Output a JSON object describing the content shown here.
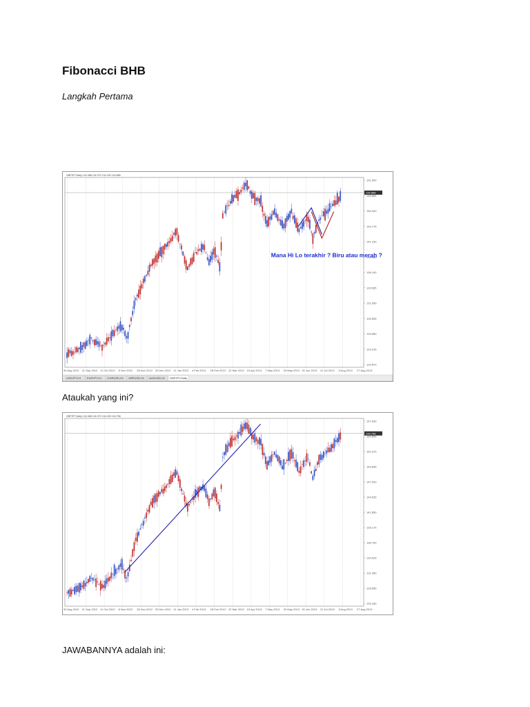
{
  "document": {
    "title": "Fibonacci BHB",
    "subtitle": "Langkah Pertama",
    "para_1": "Ataukah yang ini?",
    "para_2": "JAWABANNYA adalah ini:"
  },
  "chart_data": [
    {
      "type": "candlestick",
      "symbol_header": "GBPJPY,Daily  134.388 134.370 134.155 134.888",
      "annotation": "Mana Hi Lo terakhir ? Biru atau merah ?",
      "x_ticks": [
        "30 Aug 2012",
        "21 Sep 2012",
        "11 Oct 2012",
        "8 Nov 2012",
        "28 Nov 2012",
        "20 Dec 2012",
        "11 Jan 2013",
        "4 Feb 2013",
        "28 Feb 2013",
        "22 Mar 2013",
        "15 Apr 2013",
        "7 May 2013",
        "29 May 2013",
        "20 Jun 2013",
        "12 Jul 2013",
        "5 Aug 2013",
        "27 Aug 2013"
      ],
      "y_ticks": [
        "151.500",
        "148.865",
        "146.320",
        "143.775",
        "141.230",
        "138.685",
        "136.140",
        "133.595",
        "131.050",
        "128.505",
        "125.960",
        "123.415",
        "120.870"
      ],
      "current_price": "134.888",
      "tabs": [
        "USDJPY,H1",
        "EURJPY,H1",
        "EURUSD,H1",
        "GBPUSD,H1",
        "AUDUSD,H1",
        "GBPJPY,Daily"
      ],
      "colors": {
        "bull": "#3552c6",
        "bear": "#c03030",
        "drawn_line": "#1f1fa8",
        "red_line": "#b81a1a"
      }
    },
    {
      "type": "candlestick",
      "symbol_header": "GBPJPY,Daily  134.388 134.370 134.155 134.758",
      "x_ticks": [
        "30 Aug 2012",
        "21 Sep 2012",
        "11 Oct 2012",
        "8 Nov 2012",
        "28 Nov 2012",
        "20 Dec 2012",
        "11 Jan 2013",
        "4 Feb 2013",
        "28 Feb 2013",
        "22 Mar 2013",
        "15 Apr 2013",
        "7 May 2013",
        "29 May 2013",
        "20 Jun 2013",
        "12 Jul 2013",
        "5 Aug 2013",
        "27 Aug 2013"
      ],
      "y_ticks": [
        "157.530",
        "154.855",
        "152.370",
        "149.695",
        "147.020",
        "144.525",
        "141.850",
        "139.175",
        "136.700",
        "134.025",
        "131.350",
        "128.655",
        "126.180"
      ],
      "current_price": "134.758",
      "colors": {
        "bull": "#3552c6",
        "bear": "#c03030",
        "drawn_line": "#1f1fa8"
      }
    }
  ]
}
